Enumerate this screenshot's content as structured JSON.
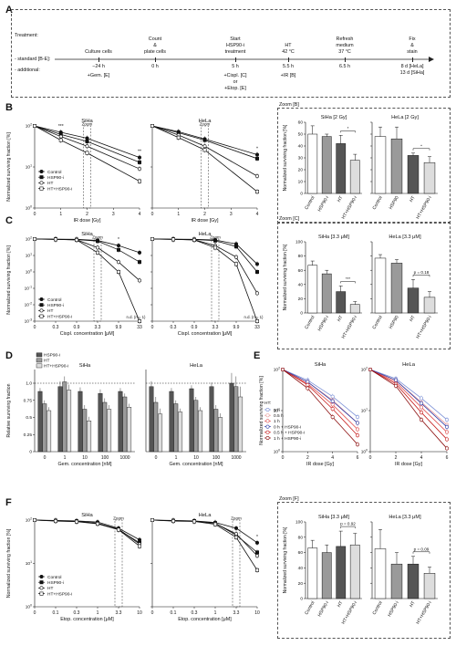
{
  "panel_labels": [
    "A",
    "B",
    "C",
    "D",
    "E",
    "F"
  ],
  "timeline": {
    "row_treatment": "Treatment:",
    "row_standard": "- standard [B-E]:",
    "row_additional": "- additional:",
    "events": [
      {
        "title": "Culture cells",
        "time": "−24 h",
        "additional": "+Gem. [E]"
      },
      {
        "title": "Count\n&\nplate cells",
        "time": "0 h",
        "additional": ""
      },
      {
        "title": "Start\nHSP90-i\ntreatment",
        "time": "5 h",
        "additional": "+Cispl. [C]\nor\n+Etop. [E]"
      },
      {
        "title": "HT\n42 °C",
        "time": "5.5 h",
        "additional": "+IR [B]"
      },
      {
        "title": "Refresh\nmedium\n37 °C",
        "time": "6.5 h",
        "additional": ""
      },
      {
        "title": "Fix\n&\nstain",
        "time": "8 d [HeLa]\n13 d [SiHa]",
        "additional": ""
      }
    ]
  },
  "legend4": [
    "Control",
    "HSP90-i",
    "HT",
    "HT+HSP90-i"
  ],
  "legendD": [
    "HSP90-i",
    "HT",
    "HT+HSP90-i"
  ],
  "legendE": {
    "title": "HT:",
    "items": [
      "0 h",
      "0.5 h",
      "1 h",
      "0 h + HSP90-i",
      "0.5 h + HSP90-i",
      "1 h + HSP90-i"
    ]
  },
  "bar_categories": [
    "Control",
    "HSP90-i",
    "HT",
    "HT+HSP90-i"
  ],
  "zoom": {
    "B": "Zoom [B]",
    "C": "Zoom [C]",
    "F": "Zoom [F]",
    "inline": "Zoom"
  },
  "chart_data": [
    {
      "id": "B-SiHa",
      "type": "line",
      "title": "SiHa",
      "xlabel": "IR dose [Gy]",
      "ylabel": "Normalized surviving fraction [%]",
      "x": [
        0,
        1,
        2,
        4
      ],
      "xticks": [
        "0",
        "1",
        "2",
        "3",
        "4"
      ],
      "xlim": [
        0,
        4
      ],
      "ylog": true,
      "ylim": [
        1,
        100
      ],
      "stars": [
        {
          "x": 1,
          "text": "***"
        },
        {
          "x": 4,
          "text": "**"
        }
      ],
      "series": [
        {
          "name": "Control",
          "values": [
            100,
            70,
            50,
            17
          ]
        },
        {
          "name": "HSP90-i",
          "values": [
            100,
            62,
            42,
            13
          ]
        },
        {
          "name": "HT",
          "values": [
            100,
            55,
            32,
            9
          ]
        },
        {
          "name": "HT+HSP90-i",
          "values": [
            100,
            45,
            22,
            4.5
          ]
        }
      ]
    },
    {
      "id": "B-HeLa",
      "type": "line",
      "title": "HeLa",
      "xlabel": "IR dose [Gy]",
      "x": [
        0,
        1,
        2,
        4
      ],
      "xticks": [
        "0",
        "1",
        "2",
        "3",
        "4"
      ],
      "xlim": [
        0,
        4
      ],
      "ylog": true,
      "ylim": [
        1,
        100
      ],
      "stars": [
        {
          "x": 4,
          "text": "*"
        }
      ],
      "series": [
        {
          "name": "Control",
          "values": [
            100,
            72,
            48,
            20
          ]
        },
        {
          "name": "HSP90-i",
          "values": [
            100,
            68,
            45,
            16
          ]
        },
        {
          "name": "HT",
          "values": [
            100,
            60,
            32,
            6
          ]
        },
        {
          "name": "HT+HSP90-i",
          "values": [
            100,
            52,
            26,
            2.5
          ]
        }
      ]
    },
    {
      "id": "B-zoom-SiHa",
      "type": "bar",
      "title": "SiHa [2 Gy]",
      "ylabel": "Normalized surviving fraction [%]",
      "ylim": [
        0,
        60
      ],
      "yticks": [
        "0",
        "10",
        "20",
        "30",
        "40",
        "50",
        "60"
      ],
      "categories": [
        "Control",
        "HSP90-i",
        "HT",
        "HT+HSP90-i"
      ],
      "values": [
        50,
        48,
        42,
        28
      ],
      "errors": [
        7,
        2,
        7,
        5
      ],
      "sig": [
        {
          "from": 2,
          "to": 3,
          "text": "*"
        }
      ]
    },
    {
      "id": "B-zoom-HeLa",
      "type": "bar",
      "title": "HeLa [2 Gy]",
      "ylim": [
        0,
        60
      ],
      "categories": [
        "Control",
        "HSP90",
        "HT",
        "HT+HSP90-i"
      ],
      "values": [
        48,
        46,
        32,
        26
      ],
      "errors": [
        8,
        10,
        2,
        5
      ],
      "sig": [
        {
          "from": 2,
          "to": 3,
          "text": "*"
        }
      ]
    },
    {
      "id": "C-SiHa",
      "type": "line",
      "title": "SiHa",
      "xlabel": "Cispl. concentration [μM]",
      "ylabel": "Normalized surviving fraction [%]",
      "x": [
        0,
        0.3,
        0.9,
        3.3,
        9.9,
        33
      ],
      "xticks": [
        "0",
        "0.3",
        "0.9",
        "3.3",
        "9.9",
        "33"
      ],
      "ylog": true,
      "ylim": [
        0.001,
        100
      ],
      "annotation": "n.d. (n = 1)",
      "stars": [
        {
          "x": 9.9,
          "text": "*"
        }
      ],
      "series": [
        {
          "name": "Control",
          "values": [
            100,
            98,
            96,
            82,
            40,
            15
          ]
        },
        {
          "name": "HSP90-i",
          "values": [
            100,
            97,
            93,
            75,
            22,
            4
          ]
        },
        {
          "name": "HT",
          "values": [
            100,
            96,
            90,
            30,
            4,
            0.3
          ]
        },
        {
          "name": "HT+HSP90-i",
          "values": [
            100,
            95,
            88,
            15,
            1,
            0.001
          ]
        }
      ]
    },
    {
      "id": "C-HeLa",
      "type": "line",
      "title": "HeLa",
      "xlabel": "Cispl. concentration [μM]",
      "x": [
        0,
        0.3,
        0.9,
        3.3,
        9.9,
        33
      ],
      "xticks": [
        "0",
        "0.3",
        "0.9",
        "3.3",
        "9.9",
        "33"
      ],
      "ylog": true,
      "ylim": [
        0.001,
        100
      ],
      "annotation": "n.d. (n = 1)",
      "series": [
        {
          "name": "Control",
          "values": [
            100,
            98,
            96,
            88,
            50,
            3
          ]
        },
        {
          "name": "HSP90-i",
          "values": [
            100,
            97,
            94,
            80,
            35,
            1
          ]
        },
        {
          "name": "HT",
          "values": [
            100,
            96,
            90,
            40,
            8,
            0.05
          ]
        },
        {
          "name": "HT+HSP90-i",
          "values": [
            100,
            95,
            88,
            30,
            3,
            0.001
          ]
        }
      ]
    },
    {
      "id": "C-zoom-SiHa",
      "type": "bar",
      "title": "SiHa [3.3 μM]",
      "ylabel": "Normalized surviving fraction [%]",
      "ylim": [
        0,
        100
      ],
      "yticks": [
        "0",
        "20",
        "40",
        "60",
        "80",
        "100"
      ],
      "categories": [
        "Control",
        "HSP90-i",
        "HT",
        "HT+HSP90-i"
      ],
      "values": [
        67,
        55,
        30,
        12
      ],
      "errors": [
        6,
        5,
        8,
        4
      ],
      "sig": [
        {
          "from": 2,
          "to": 3,
          "text": "***"
        }
      ]
    },
    {
      "id": "C-zoom-HeLa",
      "type": "bar",
      "title": "HeLa [3.3 μM]",
      "ylim": [
        0,
        100
      ],
      "categories": [
        "Control",
        "HSP90",
        "HT",
        "HT+HSP90-i"
      ],
      "values": [
        77,
        70,
        35,
        22
      ],
      "errors": [
        5,
        5,
        12,
        8
      ],
      "sig": [
        {
          "from": 2,
          "to": 3,
          "text": "p = 0.18"
        }
      ]
    },
    {
      "id": "D-SiHa",
      "type": "bar",
      "title": "SiHa",
      "xlabel": "Gem. concentration [nM]",
      "ylabel": "Relative surviving fraction",
      "categories": [
        "0",
        "1",
        "10",
        "100",
        "1000"
      ],
      "ylim": [
        0,
        1.2
      ],
      "yticks": [
        "0",
        "0.25",
        "0.5",
        "0.75",
        "1.0"
      ],
      "series": [
        {
          "name": "HSP90-i",
          "values": [
            0.88,
            0.95,
            0.88,
            0.85,
            0.88
          ]
        },
        {
          "name": "HT",
          "values": [
            0.7,
            1.02,
            0.62,
            0.72,
            0.8
          ]
        },
        {
          "name": "HT+HSP90-i",
          "values": [
            0.6,
            0.9,
            0.45,
            0.62,
            0.65
          ]
        }
      ],
      "errors": [
        0.05,
        0.08,
        0.06,
        0.06,
        0.05
      ]
    },
    {
      "id": "D-HeLa",
      "type": "bar",
      "title": "HeLa",
      "xlabel": "Gem. concentration [nM]",
      "categories": [
        "0",
        "1",
        "10",
        "100",
        "1000"
      ],
      "ylim": [
        0,
        1.2
      ],
      "series": [
        {
          "name": "HSP90-i",
          "values": [
            0.95,
            0.88,
            0.92,
            0.95,
            1.0
          ]
        },
        {
          "name": "HT",
          "values": [
            0.72,
            0.7,
            0.75,
            0.62,
            0.95
          ]
        },
        {
          "name": "HT+HSP90-i",
          "values": [
            0.55,
            0.58,
            0.6,
            0.5,
            0.8
          ]
        }
      ],
      "errors": [
        0.08,
        0.05,
        0.05,
        0.06,
        0.15
      ]
    },
    {
      "id": "E-SiHa",
      "type": "line",
      "title": "SiHa",
      "xlabel": "IR dose [Gy]",
      "ylabel": "Normalized surviving fraction [%]",
      "x": [
        0,
        2,
        4,
        6
      ],
      "xticks": [
        "0",
        "2",
        "4",
        "6"
      ],
      "ylog": true,
      "ylim": [
        1,
        100
      ],
      "series": [
        {
          "name": "0 h",
          "values": [
            100,
            55,
            22,
            7
          ]
        },
        {
          "name": "0.5 h",
          "values": [
            100,
            50,
            18,
            5
          ]
        },
        {
          "name": "1 h",
          "values": [
            100,
            45,
            14,
            3.5
          ]
        },
        {
          "name": "0 h + HSP90-i",
          "values": [
            100,
            50,
            17,
            5
          ]
        },
        {
          "name": "0.5 h + HSP90-i",
          "values": [
            100,
            42,
            11,
            2.5
          ]
        },
        {
          "name": "1 h + HSP90-i",
          "values": [
            100,
            35,
            7,
            1.5
          ]
        }
      ]
    },
    {
      "id": "E-HeLa",
      "type": "line",
      "title": "HeLa",
      "xlabel": "IR dose [Gy]",
      "x": [
        0,
        2,
        4,
        6
      ],
      "xticks": [
        "0",
        "2",
        "4",
        "6"
      ],
      "ylog": true,
      "ylim": [
        1,
        100
      ],
      "series": [
        {
          "name": "0 h",
          "values": [
            100,
            60,
            20,
            6
          ]
        },
        {
          "name": "0.5 h",
          "values": [
            100,
            55,
            16,
            4.5
          ]
        },
        {
          "name": "1 h",
          "values": [
            100,
            50,
            12,
            3
          ]
        },
        {
          "name": "0 h + HSP90-i",
          "values": [
            100,
            55,
            15,
            4
          ]
        },
        {
          "name": "0.5 h + HSP90-i",
          "values": [
            100,
            45,
            9,
            2
          ]
        },
        {
          "name": "1 h + HSP90-i",
          "values": [
            100,
            40,
            6,
            1.2
          ]
        }
      ]
    },
    {
      "id": "F-SiHa",
      "type": "line",
      "title": "SiHa",
      "xlabel": "Etop. concentration [μM]",
      "ylabel": "Normalized surviving fraction [%]",
      "x": [
        0,
        0.1,
        0.3,
        1,
        3.3,
        10
      ],
      "xticks": [
        "0",
        "0.1",
        "0.3",
        "1",
        "3.3",
        "10"
      ],
      "ylog": true,
      "ylim": [
        1,
        100
      ],
      "series": [
        {
          "name": "Control",
          "values": [
            100,
            98,
            96,
            90,
            65,
            35
          ]
        },
        {
          "name": "HSP90-i",
          "values": [
            100,
            97,
            94,
            85,
            60,
            30
          ]
        },
        {
          "name": "HT",
          "values": [
            100,
            96,
            93,
            84,
            62,
            28
          ]
        },
        {
          "name": "HT+HSP90-i",
          "values": [
            100,
            95,
            92,
            82,
            60,
            25
          ]
        }
      ]
    },
    {
      "id": "F-HeLa",
      "type": "line",
      "title": "HeLa",
      "xlabel": "Etop. concentration [μM]",
      "x": [
        0,
        0.1,
        0.3,
        1,
        3.3,
        10
      ],
      "xticks": [
        "0",
        "0.1",
        "0.3",
        "1",
        "3.3",
        "10"
      ],
      "ylog": true,
      "ylim": [
        1,
        100
      ],
      "stars": [
        {
          "x": 10,
          "text": "*"
        }
      ],
      "series": [
        {
          "name": "Control",
          "values": [
            100,
            98,
            96,
            88,
            65,
            30
          ]
        },
        {
          "name": "HSP90-i",
          "values": [
            100,
            97,
            95,
            85,
            45,
            18
          ]
        },
        {
          "name": "HT",
          "values": [
            100,
            96,
            94,
            84,
            48,
            15
          ]
        },
        {
          "name": "HT+HSP90-i",
          "values": [
            100,
            95,
            93,
            80,
            40,
            7
          ]
        }
      ]
    },
    {
      "id": "F-zoom-SiHa",
      "type": "bar",
      "title": "SiHa [3.3 μM]",
      "ylabel": "Normalized surviving fraction [%]",
      "ylim": [
        0,
        100
      ],
      "yticks": [
        "0",
        "20",
        "40",
        "60",
        "80",
        "100"
      ],
      "categories": [
        "Control",
        "HSP90-i",
        "HT",
        "HT+HSP90-i"
      ],
      "values": [
        66,
        60,
        68,
        70
      ],
      "errors": [
        10,
        10,
        20,
        15
      ],
      "sig": [
        {
          "from": 2,
          "to": 3,
          "text": "p = 0.92"
        }
      ]
    },
    {
      "id": "F-zoom-HeLa",
      "type": "bar",
      "title": "HeLa [3.3 μM]",
      "ylim": [
        0,
        100
      ],
      "categories": [
        "Control",
        "HSP90-i",
        "HT",
        "HT+HSP90-i"
      ],
      "values": [
        65,
        45,
        45,
        33
      ],
      "errors": [
        25,
        15,
        10,
        8
      ],
      "sig": [
        {
          "from": 2,
          "to": 3,
          "text": "p = 0.09"
        }
      ]
    }
  ]
}
